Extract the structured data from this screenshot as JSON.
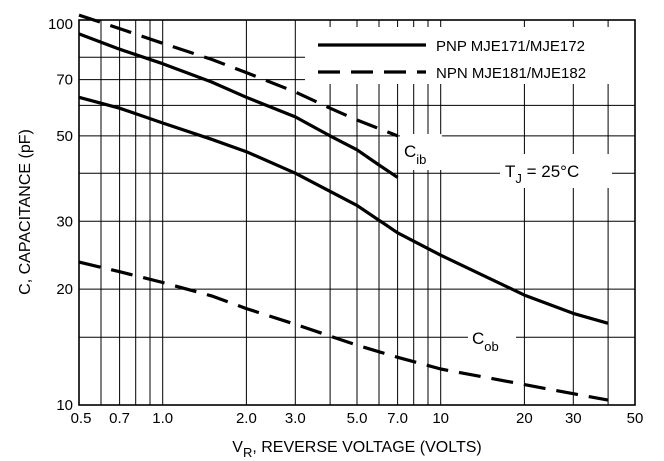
{
  "chart_data": {
    "type": "line",
    "title": "",
    "xlabel_main": "V",
    "xlabel_sub": "R",
    "xlabel_rest": ", REVERSE VOLTAGE (VOLTS)",
    "ylabel": "C, CAPACITANCE (pF)",
    "x_scale": "log",
    "y_scale": "log",
    "xlim": [
      0.5,
      50
    ],
    "ylim": [
      10,
      100
    ],
    "grid": true,
    "legend_position": "top-right",
    "x_ticks": [
      {
        "v": 0.5,
        "label": "0.5"
      },
      {
        "v": 0.7,
        "label": "0.7"
      },
      {
        "v": 1.0,
        "label": "1.0"
      },
      {
        "v": 2.0,
        "label": "2.0"
      },
      {
        "v": 3.0,
        "label": "3.0"
      },
      {
        "v": 5.0,
        "label": "5.0"
      },
      {
        "v": 7.0,
        "label": "7.0"
      },
      {
        "v": 10,
        "label": "10"
      },
      {
        "v": 20,
        "label": "20"
      },
      {
        "v": 30,
        "label": "30"
      },
      {
        "v": 50,
        "label": "50"
      }
    ],
    "x_grid": [
      0.5,
      0.6,
      0.7,
      0.8,
      0.9,
      1,
      2,
      3,
      4,
      5,
      6,
      7,
      8,
      9,
      10,
      20,
      30,
      40,
      50
    ],
    "y_ticks": [
      {
        "v": 10,
        "label": "10"
      },
      {
        "v": 20,
        "label": "20"
      },
      {
        "v": 30,
        "label": "30"
      },
      {
        "v": 50,
        "label": "50"
      },
      {
        "v": 70,
        "label": "70"
      },
      {
        "v": 100,
        "label": "100"
      }
    ],
    "y_grid": [
      10,
      15,
      20,
      30,
      40,
      50,
      60,
      70,
      80,
      100
    ],
    "legend": [
      {
        "name": "PNP MJE171/MJE172",
        "style": "solid"
      },
      {
        "name": "NPN MJE181/MJE182",
        "style": "dashed"
      }
    ],
    "annotations": {
      "cib": {
        "main": "C",
        "sub": "ib"
      },
      "cob": {
        "main": "C",
        "sub": "ob"
      },
      "tj": {
        "main": "T",
        "sub": "J",
        "rest": " = 25°C"
      }
    },
    "series": [
      {
        "style": "solid",
        "group": "Cib",
        "points": [
          [
            0.5,
            92
          ],
          [
            0.7,
            84
          ],
          [
            1.0,
            77
          ],
          [
            1.5,
            69
          ],
          [
            2.0,
            63
          ],
          [
            3.0,
            56
          ],
          [
            4.0,
            50
          ],
          [
            5.0,
            46
          ],
          [
            6.0,
            42
          ],
          [
            7.0,
            39
          ]
        ]
      },
      {
        "style": "dashed",
        "group": "Cib",
        "points": [
          [
            0.5,
            103
          ],
          [
            0.7,
            95
          ],
          [
            1.0,
            87
          ],
          [
            1.5,
            79
          ],
          [
            2.0,
            73
          ],
          [
            3.0,
            65
          ],
          [
            4.0,
            59
          ],
          [
            5.0,
            55
          ],
          [
            7.0,
            50
          ]
        ]
      },
      {
        "style": "solid",
        "group": "Cob",
        "points": [
          [
            0.5,
            63
          ],
          [
            0.7,
            59
          ],
          [
            1.0,
            54
          ],
          [
            1.5,
            49
          ],
          [
            2.0,
            45.5
          ],
          [
            3.0,
            40
          ],
          [
            5.0,
            33
          ],
          [
            7.0,
            28
          ],
          [
            10,
            24.5
          ],
          [
            20,
            19.3
          ],
          [
            30,
            17.3
          ],
          [
            40,
            16.3
          ]
        ]
      },
      {
        "style": "dashed",
        "group": "Cob",
        "points": [
          [
            0.5,
            23.5
          ],
          [
            0.7,
            22.2
          ],
          [
            1.0,
            20.8
          ],
          [
            1.5,
            19.2
          ],
          [
            2.0,
            17.8
          ],
          [
            3.0,
            16.2
          ],
          [
            5.0,
            14.3
          ],
          [
            7.0,
            13.3
          ],
          [
            10,
            12.4
          ],
          [
            20,
            11.3
          ],
          [
            30,
            10.7
          ],
          [
            40,
            10.3
          ]
        ]
      }
    ]
  }
}
